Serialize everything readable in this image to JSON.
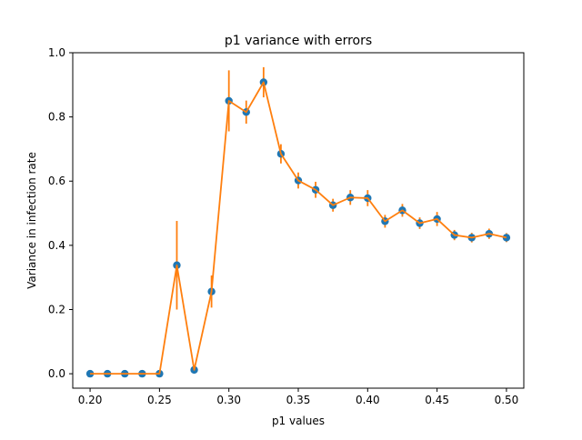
{
  "chart_data": {
    "type": "scatter",
    "title": "p1 variance with errors",
    "xlabel": "p1 values",
    "ylabel": "Variance in infection rate",
    "xlim": [
      0.1875,
      0.5125
    ],
    "ylim": [
      -0.045,
      1.0
    ],
    "xticks": [
      0.2,
      0.25,
      0.3,
      0.35,
      0.4,
      0.45,
      0.5
    ],
    "xtick_labels": [
      "0.20",
      "0.25",
      "0.30",
      "0.35",
      "0.40",
      "0.45",
      "0.50"
    ],
    "yticks": [
      0.0,
      0.2,
      0.4,
      0.6,
      0.8,
      1.0
    ],
    "ytick_labels": [
      "0.0",
      "0.2",
      "0.4",
      "0.6",
      "0.8",
      "1.0"
    ],
    "grid": false,
    "series": [
      {
        "marker_color": "#1f77b4",
        "line_color": "#ff7f0e",
        "x": [
          0.2,
          0.2125,
          0.225,
          0.2375,
          0.25,
          0.2625,
          0.275,
          0.2875,
          0.3,
          0.3125,
          0.325,
          0.3375,
          0.35,
          0.3625,
          0.375,
          0.3875,
          0.4,
          0.4125,
          0.425,
          0.4375,
          0.45,
          0.4625,
          0.475,
          0.4875,
          0.5
        ],
        "y": [
          0.0,
          0.0,
          0.0,
          0.0,
          0.0,
          0.338,
          0.012,
          0.256,
          0.85,
          0.815,
          0.908,
          0.685,
          0.602,
          0.573,
          0.525,
          0.549,
          0.547,
          0.475,
          0.509,
          0.469,
          0.482,
          0.432,
          0.424,
          0.436,
          0.424
        ],
        "yerr": [
          0.0,
          0.0,
          0.0,
          0.0,
          0.0,
          0.138,
          0.008,
          0.05,
          0.095,
          0.036,
          0.047,
          0.03,
          0.025,
          0.025,
          0.02,
          0.023,
          0.025,
          0.02,
          0.02,
          0.018,
          0.022,
          0.016,
          0.015,
          0.016,
          0.014
        ]
      }
    ]
  }
}
